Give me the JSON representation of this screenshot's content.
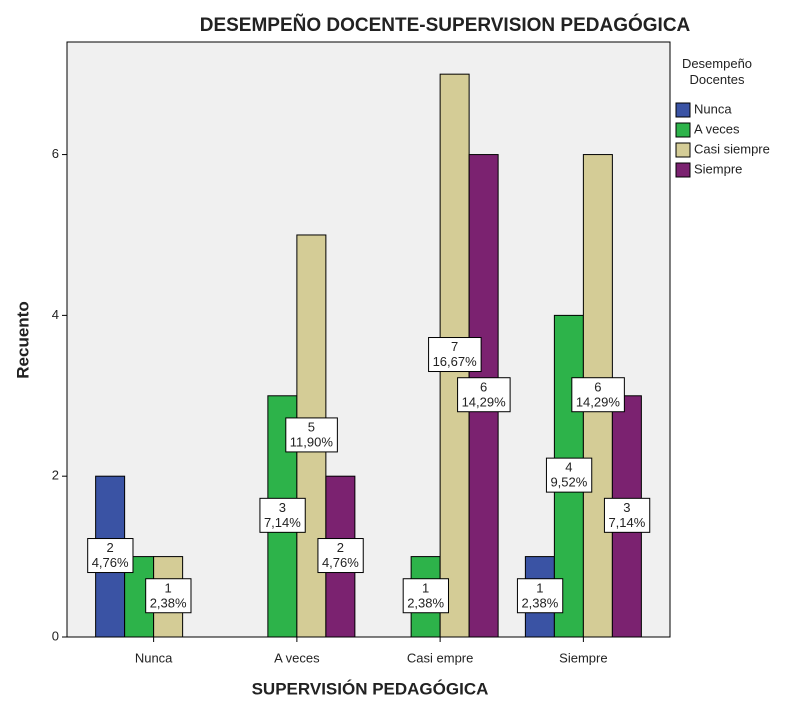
{
  "chart_data": {
    "type": "bar",
    "title": "DESEMPEÑO DOCENTE-SUPERVISION PEDAGÓGICA",
    "x_label": "SUPERVISIÓN PEDAGÓGICA",
    "y_label": "Recuento",
    "legend_title": "Desempeño\nDocentes",
    "legend_position": "right",
    "categories": [
      "Nunca",
      "A veces",
      "Casi empre",
      "Siempre"
    ],
    "series": [
      {
        "name": "Nunca",
        "color": "#3a53a4",
        "values": [
          2,
          null,
          null,
          1
        ],
        "value_labels": [
          "2\n4,76%",
          null,
          null,
          "1\n2,38%"
        ]
      },
      {
        "name": "A veces",
        "color": "#2db34a",
        "values": [
          1,
          3,
          1,
          4
        ],
        "value_labels": [
          null,
          "3\n7,14%",
          "1\n2,38%",
          "4\n9,52%"
        ]
      },
      {
        "name": "Casi siempre",
        "color": "#d4cc96",
        "values": [
          1,
          5,
          7,
          6
        ],
        "value_labels": [
          "1\n2,38%",
          "5\n11,90%",
          "7\n16,67%",
          "6\n14,29%"
        ]
      },
      {
        "name": "Siempre",
        "color": "#7b2270",
        "values": [
          null,
          2,
          6,
          3
        ],
        "value_labels": [
          null,
          "2\n4,76%",
          "6\n14,29%",
          "3\n7,14%"
        ]
      }
    ],
    "ylim": [
      0,
      7.4
    ],
    "yticks": [
      0,
      2,
      4,
      6
    ],
    "grid": false
  }
}
